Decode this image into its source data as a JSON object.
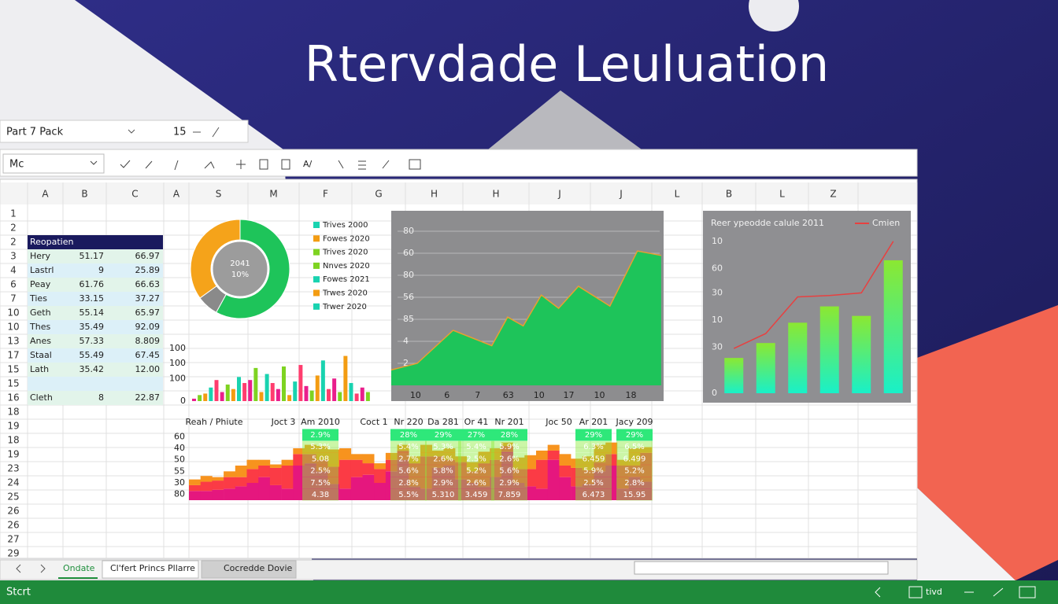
{
  "title": "Rtervdade Leuluation",
  "toolbar": {
    "font_name": "Part 7 Pack",
    "font_size": "15",
    "name_box": "Mc",
    "formula_button": "A/"
  },
  "sheet": {
    "columns": [
      "A",
      "B",
      "C",
      "A",
      "S",
      "M",
      "F",
      "G",
      "H",
      "H",
      "J",
      "J",
      "L",
      "B",
      "L",
      "Z"
    ],
    "rows": [
      "1",
      "2",
      "2",
      "3",
      "4",
      "6",
      "7",
      "10",
      "10",
      "13",
      "17",
      "15",
      "15",
      "16",
      "18",
      "19",
      "18",
      "19",
      "23",
      "24",
      "25",
      "26",
      "26",
      "27",
      "29"
    ]
  },
  "table": {
    "header": "Reopatien",
    "rows": [
      [
        "Hery",
        "51.17",
        "66.97"
      ],
      [
        "Lastrl",
        "9",
        "25.89"
      ],
      [
        "Peay",
        "61.76",
        "66.63"
      ],
      [
        "Ties",
        "33.15",
        "37.27"
      ],
      [
        "Geth",
        "55.14",
        "65.97"
      ],
      [
        "Thes",
        "35.49",
        "92.09"
      ],
      [
        "Anes",
        "57.33",
        "8.809"
      ],
      [
        "Staal",
        "55.49",
        "67.45"
      ],
      [
        "Lath",
        "35.42",
        "12.00"
      ],
      [
        "Cleth",
        "8",
        "22.87"
      ]
    ]
  },
  "chart_data": [
    {
      "type": "pie",
      "center_label": [
        "2041",
        "10%"
      ],
      "values": [
        58,
        7,
        35
      ],
      "colors": [
        "#1ec45a",
        "#8a8a8a",
        "#f5a31a"
      ],
      "legend": [
        {
          "name": "Trives 2000",
          "color": "#19d3b0"
        },
        {
          "name": "Fowes 2020",
          "color": "#f39c12"
        },
        {
          "name": "Trives 2020",
          "color": "#7ed321"
        },
        {
          "name": "Nnves 2020",
          "color": "#7ed321"
        },
        {
          "name": "Fowes 2021",
          "color": "#19d3b0"
        },
        {
          "name": "Trwes 2020",
          "color": "#f39c12"
        },
        {
          "name": "Trwer 2020",
          "color": "#19d3b0"
        }
      ]
    },
    {
      "type": "bar",
      "values": [
        8,
        20,
        25,
        45,
        70,
        30,
        55,
        40,
        80,
        60,
        70,
        110,
        30,
        90,
        60,
        40,
        115,
        20,
        65,
        120,
        50,
        35,
        85,
        135,
        40,
        75,
        30,
        150,
        60,
        25,
        45,
        30
      ],
      "colors": [
        "#e91e8c",
        "#7ed321",
        "#f39c12",
        "#19d3b0",
        "#ff3d6e"
      ],
      "ylim": [
        0,
        175
      ],
      "yticks": [
        0,
        {
          "value": 75,
          "label": "100"
        },
        {
          "value": 125,
          "label": "100"
        },
        {
          "value": 175,
          "label": "100"
        }
      ]
    },
    {
      "type": "area",
      "color": "#1ec45a",
      "line_color": "#e8a030",
      "x": [
        0,
        1.05,
        2.5,
        4.06,
        4.7,
        5.33,
        6.06,
        6.76,
        7.56,
        8.83,
        9.94,
        10.9
      ],
      "values": [
        0.7,
        1.0,
        2.5,
        1.8,
        3.1,
        2.7,
        4.1,
        3.5,
        4.5,
        3.6,
        6.1,
        5.9
      ],
      "xlim": [
        0,
        11
      ],
      "ylim": [
        0,
        8
      ],
      "xticks": [
        {
          "value": 0.98,
          "label": "10"
        },
        {
          "value": 2.25,
          "label": "6"
        },
        {
          "value": 3.49,
          "label": "7"
        },
        {
          "value": 4.73,
          "label": "63"
        },
        {
          "value": 5.97,
          "label": "10"
        },
        {
          "value": 7.17,
          "label": "17"
        },
        {
          "value": 8.41,
          "label": "10"
        },
        {
          "value": 9.68,
          "label": "18"
        }
      ],
      "yticks": [
        {
          "value": 7,
          "label": "80"
        },
        {
          "value": 6,
          "label": "60"
        },
        {
          "value": 5,
          "label": "80"
        },
        {
          "value": 4,
          "label": "56"
        },
        {
          "value": 3,
          "label": "85"
        },
        {
          "value": 2,
          "label": "4"
        },
        {
          "value": 1,
          "label": "2"
        }
      ]
    },
    {
      "type": "bar-line",
      "title": "Reer ypeodde calule 2011",
      "bars": {
        "values": [
          1.3,
          1.85,
          2.6,
          3.2,
          2.85,
          4.9
        ]
      },
      "series": [
        {
          "name": "Cmien",
          "color": "#e84040",
          "values": [
            1.65,
            2.2,
            3.55,
            3.6,
            3.7,
            5.6
          ]
        }
      ],
      "ylim": [
        0,
        6.5
      ],
      "yticks": [
        0,
        {
          "value": 1.7,
          "label": "30"
        },
        {
          "value": 2.7,
          "label": "10"
        },
        {
          "value": 3.7,
          "label": "30"
        },
        {
          "value": 4.6,
          "label": "60"
        },
        {
          "value": 5.6,
          "label": "10"
        }
      ]
    },
    {
      "type": "stacked-bar",
      "column_headers": [
        "Reah / Phiute",
        "Joct 3",
        "Am 2010",
        "Coct 1",
        "Nr 220",
        "Da 281",
        "Or 41",
        "Nr 201",
        "Joc 50",
        "Ar 201",
        "Jacy 209"
      ],
      "cells": [
        null,
        null,
        [
          "2.9%",
          "5.3%",
          "5.08",
          "2.5%",
          "7.5%",
          "4.38"
        ],
        null,
        [
          "28%",
          "5.4%",
          "2.7%",
          "5.6%",
          "2.8%",
          "5.5%"
        ],
        [
          "29%",
          "5.3%",
          "2.6%",
          "5.8%",
          "2.9%",
          "5.310"
        ],
        [
          "27%",
          "5.4%",
          "2.5%",
          "5.2%",
          "2.6%",
          "3.459"
        ],
        [
          "28%",
          "5.9%",
          "2.6%",
          "5.6%",
          "2.9%",
          "7.859"
        ],
        null,
        [
          "29%",
          "6.3%",
          "6.459",
          "5.9%",
          "2.5%",
          "6.473"
        ],
        [
          "29%",
          "6.5%",
          "6.499",
          "5.2%",
          "2.8%",
          "15.95"
        ]
      ],
      "stacks": [
        {
          "color": "#e5177e",
          "values": [
            0.8,
            0.8,
            0.9,
            1.0,
            1.2,
            1.5,
            2.0,
            1.3,
            1.0,
            3.0,
            3.2,
            2.5,
            1.4,
            1.0,
            2.0,
            2.2,
            1.5,
            2.5,
            3.5,
            1.2,
            1.0,
            2.8,
            3.0,
            1.8,
            1.5,
            1.2,
            2.0,
            4.2,
            1.5,
            1.2,
            1.0,
            3.5,
            2.0,
            1.2,
            1.4,
            2.5,
            3.0,
            1.0,
            2.0,
            1.6
          ]
        },
        {
          "color": "#fb3b45",
          "values": [
            0.5,
            0.8,
            0.8,
            1.0,
            0.8,
            1.2,
            1.0,
            1.5,
            2.0,
            1.0,
            0.8,
            1.0,
            1.5,
            2.5,
            1.5,
            1.0,
            1.2,
            1.0,
            0.8,
            2.0,
            2.8,
            1.0,
            0.5,
            1.5,
            1.0,
            2.0,
            1.5,
            0.5,
            1.2,
            1.5,
            2.5,
            0.8,
            1.0,
            1.6,
            1.2,
            0.8,
            1.0,
            2.0,
            1.0,
            2.5
          ]
        },
        {
          "color": "#f7931e",
          "values": [
            0.5,
            0.5,
            0.3,
            0.5,
            1.0,
            0.8,
            0.5,
            0.3,
            0.5,
            0.5,
            0.8,
            1.2,
            1.5,
            1.0,
            0.5,
            0.8,
            0.5,
            0.6,
            0.5,
            0.6,
            1.0,
            0.5,
            1.0,
            0.5,
            0.8,
            1.0,
            1.0,
            0.3,
            1.0,
            1.2,
            0.8,
            0.5,
            1.0,
            0.8,
            1.2,
            1.5,
            1.0,
            0.5,
            1.5,
            0.5
          ]
        }
      ],
      "ylim": [
        0,
        6
      ],
      "yticks": [
        {
          "value": 5.5,
          "label": "60"
        },
        {
          "value": 4.5,
          "label": "40"
        },
        {
          "value": 3.5,
          "label": "50"
        },
        {
          "value": 2.5,
          "label": "55"
        },
        {
          "value": 1.5,
          "label": "30"
        },
        {
          "value": 0.5,
          "label": "80"
        }
      ]
    }
  ],
  "tabs": [
    "Ondate",
    "Cl'fert Princs Pllarre",
    "Cocredde Dovie"
  ],
  "status": {
    "left": "Stcrt",
    "right": "tivd"
  }
}
